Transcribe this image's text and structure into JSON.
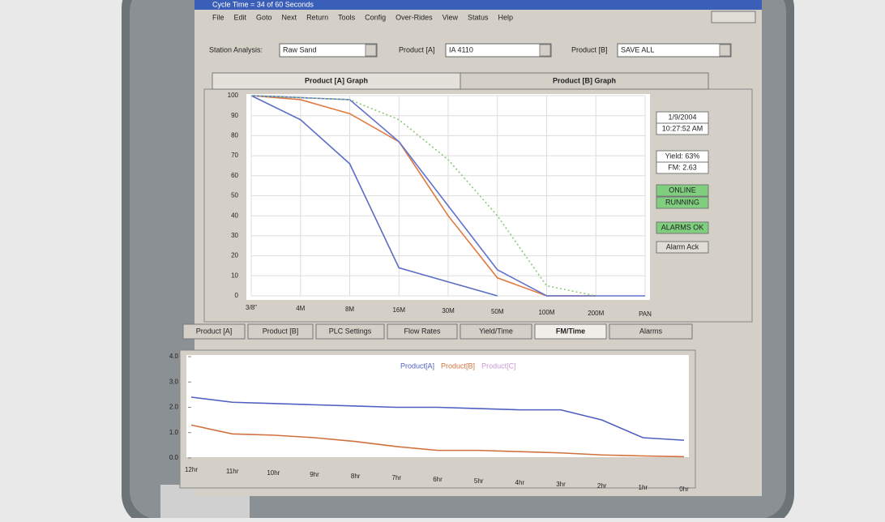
{
  "window": {
    "title": "Cycle Time = 34 of 60 Seconds",
    "menu": [
      "File",
      "Edit",
      "Goto",
      "Next",
      "Return",
      "Tools",
      "Config",
      "Over-Rides",
      "View",
      "Status",
      "Help"
    ]
  },
  "selectors": [
    {
      "label": "Station Analysis:",
      "value": "Raw Sand"
    },
    {
      "label": "Product [A]",
      "value": "IA 4110"
    },
    {
      "label": "Product [B]",
      "value": "SAVE ALL"
    }
  ],
  "graph_tabs": [
    "Product [A] Graph",
    "Product [B] Graph"
  ],
  "top_graph": {
    "type": "line",
    "categories": [
      "3/8\"",
      "4M",
      "8M",
      "16M",
      "30M",
      "50M",
      "100M",
      "200M",
      "PAN"
    ],
    "ylim": [
      0,
      100
    ],
    "yticks": [
      0,
      10,
      20,
      30,
      40,
      50,
      60,
      70,
      80,
      90,
      100
    ],
    "grid": true,
    "series": [
      {
        "color": "#5a6cc4",
        "values": [
          100,
          88,
          66,
          14,
          7,
          0,
          null,
          null,
          null
        ]
      },
      {
        "color": "#e07a40",
        "values": [
          100,
          98,
          91,
          77,
          40,
          9,
          0,
          0,
          null
        ]
      },
      {
        "color": "#6272cc",
        "values": [
          100,
          99,
          98,
          77,
          45,
          13,
          0,
          0,
          0
        ]
      },
      {
        "color": "#8cc878",
        "dashed": true,
        "values": [
          100,
          99,
          98,
          88,
          68,
          40,
          5,
          0,
          null
        ]
      }
    ]
  },
  "status": {
    "date": "1/9/2004",
    "time": "10:27:52 AM",
    "yield": "Yield: 63%",
    "fm": "FM: 2.63",
    "online": "ONLINE",
    "running": "RUNNING",
    "alarms": "ALARMS OK",
    "ack": "Alarm Ack"
  },
  "bottom_tabs": [
    "Product [A]",
    "Product [B]",
    "PLC Settings",
    "Flow Rates",
    "Yield/Time",
    "FM/Time",
    "Alarms"
  ],
  "bottom_graph": {
    "type": "line",
    "categories": [
      "12hr",
      "11hr",
      "10hr",
      "9hr",
      "8hr",
      "7hr",
      "6hr",
      "5hr",
      "4hr",
      "3hr",
      "2hr",
      "1hr",
      "0hr"
    ],
    "ylim": [
      0,
      4
    ],
    "yticks": [
      {
        "value": 0,
        "label": "0.0"
      },
      {
        "value": 1,
        "label": "1.0"
      },
      {
        "value": 2,
        "label": "2.0"
      },
      {
        "value": 3,
        "label": "3.0"
      },
      {
        "value": 4,
        "label": "4.0"
      }
    ],
    "series": [
      {
        "name": "Product[A]",
        "color": "#5060c0",
        "values": [
          2.4,
          2.2,
          2.15,
          2.1,
          2.05,
          2.0,
          2.0,
          1.95,
          1.9,
          1.9,
          1.5,
          0.8,
          0.7
        ]
      },
      {
        "name": "Product[B]",
        "color": "#d0703c",
        "values": [
          1.3,
          0.95,
          0.9,
          0.8,
          0.65,
          0.45,
          0.3,
          0.3,
          0.25,
          0.2,
          0.12,
          0.08,
          0.05
        ]
      },
      {
        "name": "Product[C]",
        "color": "#c79ad8",
        "values": []
      }
    ]
  }
}
